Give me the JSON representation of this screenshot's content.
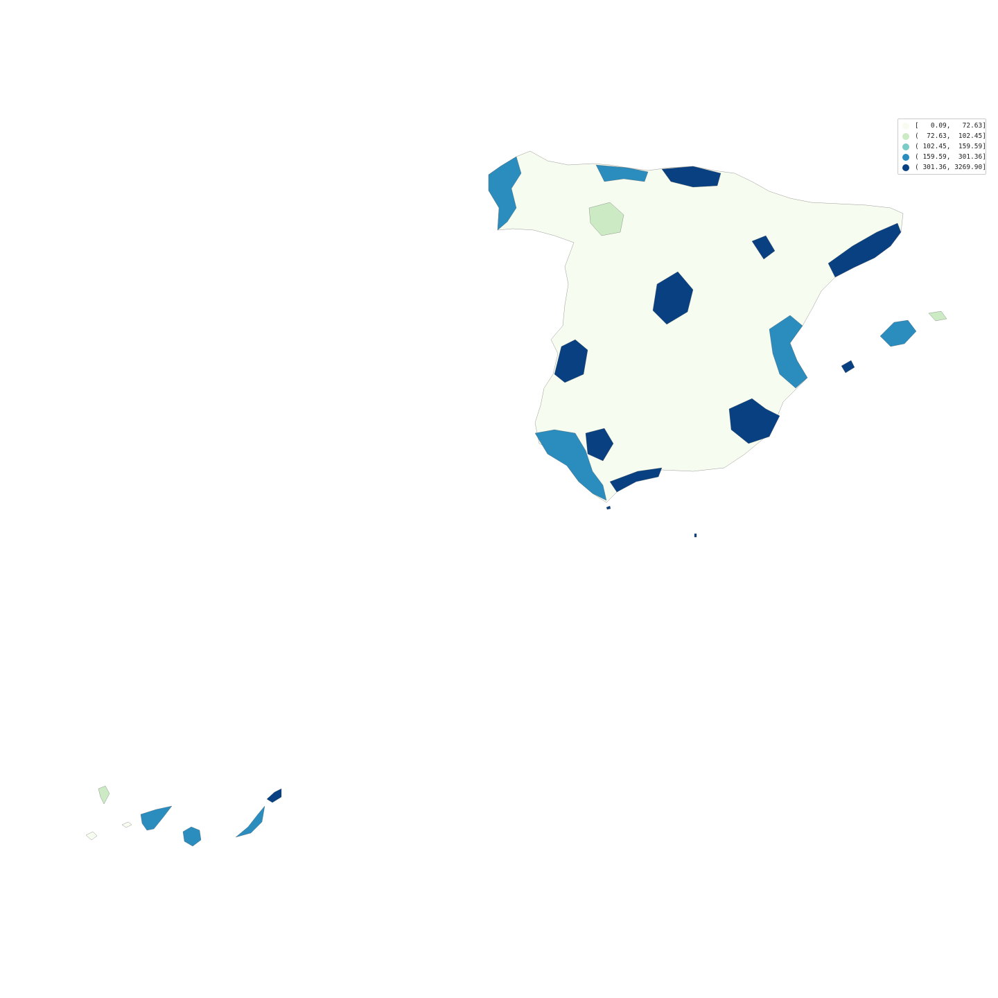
{
  "legend": {
    "classes": [
      {
        "label": "[   0.09,   72.63]",
        "color": "#f7fcf0"
      },
      {
        "label": "(  72.63,  102.45]",
        "color": "#ccebc5"
      },
      {
        "label": "( 102.45,  159.59]",
        "color": "#7bccc4"
      },
      {
        "label": "( 159.59,  301.36]",
        "color": "#2b8cbe"
      },
      {
        "label": "( 301.36, 3269.90]",
        "color": "#084081"
      }
    ]
  },
  "regions": [
    {
      "name": "peninsula",
      "class": 0
    },
    {
      "name": "galicia-coast",
      "class": 3
    },
    {
      "name": "asturias-cantabria-coast",
      "class": 3
    },
    {
      "name": "basque-country",
      "class": 4
    },
    {
      "name": "madrid",
      "class": 4
    },
    {
      "name": "zaragoza",
      "class": 4
    },
    {
      "name": "catalonia-coast",
      "class": 4
    },
    {
      "name": "valencia-coast",
      "class": 3
    },
    {
      "name": "murcia-alicante",
      "class": 4
    },
    {
      "name": "andalusia-west",
      "class": 3
    },
    {
      "name": "seville",
      "class": 4
    },
    {
      "name": "malaga-coast",
      "class": 4
    },
    {
      "name": "extremadura-badajoz",
      "class": 4
    },
    {
      "name": "north-meseta",
      "class": 1
    },
    {
      "name": "mallorca",
      "class": 3
    },
    {
      "name": "menorca",
      "class": 1
    },
    {
      "name": "ibiza",
      "class": 4
    },
    {
      "name": "ceuta",
      "class": 4
    },
    {
      "name": "melilla",
      "class": 4
    },
    {
      "name": "la-palma",
      "class": 1
    },
    {
      "name": "el-hierro",
      "class": 0
    },
    {
      "name": "la-gomera",
      "class": 0
    },
    {
      "name": "tenerife",
      "class": 3
    },
    {
      "name": "gran-canaria",
      "class": 3
    },
    {
      "name": "fuerteventura",
      "class": 3
    },
    {
      "name": "lanzarote",
      "class": 4
    }
  ]
}
